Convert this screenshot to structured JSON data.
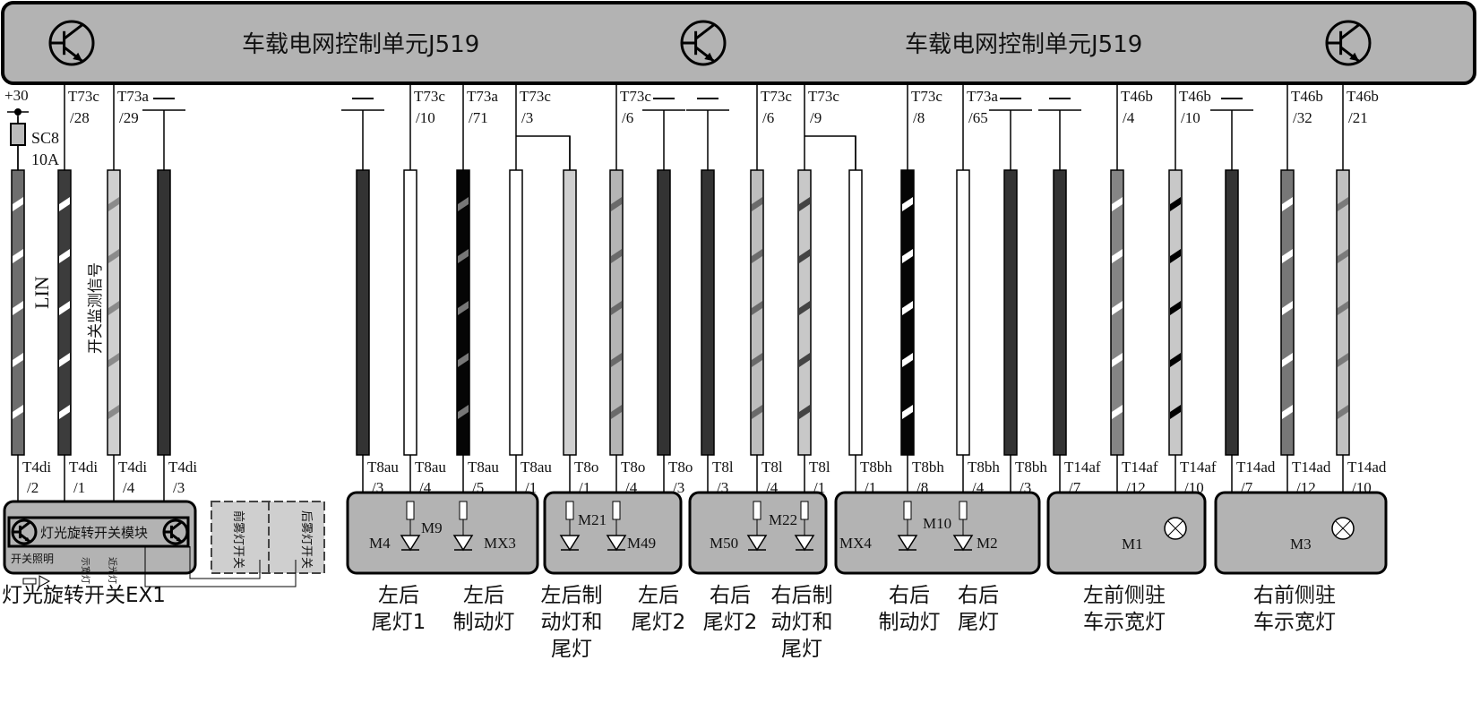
{
  "header": {
    "title_left": "车载电网控制单元J519",
    "title_right": "车载电网控制单元J519",
    "icon": "transistor-icon",
    "fill": "#b3b3b3"
  },
  "fuse": {
    "terminal": "+30",
    "name": "SC8",
    "rating": "10A"
  },
  "wire_labels": {
    "lin": "LIN",
    "switch_monitor": "开关监测信号"
  },
  "wires": [
    {
      "top": "+30",
      "top2": "",
      "bot": "T4di",
      "bot2": "/2",
      "color": "#6e6e6e",
      "stripe": "#ffffff",
      "ground": false
    },
    {
      "top": "T73c",
      "top2": "/28",
      "bot": "T4di",
      "bot2": "/1",
      "color": "#3c3c3c",
      "stripe": "#ffffff",
      "ground": false
    },
    {
      "top": "T73a",
      "top2": "/29",
      "bot": "T4di",
      "bot2": "/4",
      "color": "#cfcfcf",
      "stripe": "#8a8a8a",
      "ground": false
    },
    {
      "top": "",
      "top2": "",
      "bot": "T4di",
      "bot2": "/3",
      "color": "#333333",
      "stripe": "",
      "ground": true
    },
    {
      "top": "",
      "top2": "",
      "bot": "T8au",
      "bot2": "/3",
      "color": "#333333",
      "stripe": "",
      "ground": true
    },
    {
      "top": "T73c",
      "top2": "/10",
      "bot": "T8au",
      "bot2": "/4",
      "color": "#ffffff",
      "stripe": "",
      "ground": false
    },
    {
      "top": "T73a",
      "top2": "/71",
      "bot": "T8au",
      "bot2": "/5",
      "color": "#050505",
      "stripe": "#777777",
      "ground": false
    },
    {
      "top": "T73c",
      "top2": "/3",
      "bot": "T8au",
      "bot2": "/1",
      "color": "#ffffff",
      "stripe": "",
      "ground": false
    },
    {
      "top": "",
      "top2": "",
      "bot": "T8o",
      "bot2": "/1",
      "color": "#cfcfcf",
      "stripe": "",
      "ground": false
    },
    {
      "top": "T73c",
      "top2": "/6",
      "bot": "T8o",
      "bot2": "/4",
      "color": "#b5b5b5",
      "stripe": "#6a6a6a",
      "ground": false
    },
    {
      "top": "",
      "top2": "",
      "bot": "T8o",
      "bot2": "/3",
      "color": "#333333",
      "stripe": "",
      "ground": true
    },
    {
      "top": "",
      "top2": "",
      "bot": "T8l",
      "bot2": "/3",
      "color": "#333333",
      "stripe": "",
      "ground": true
    },
    {
      "top": "T73c",
      "top2": "/6",
      "bot": "T8l",
      "bot2": "/4",
      "color": "#bdbdbd",
      "stripe": "#6a6a6a",
      "ground": false
    },
    {
      "top": "T73c",
      "top2": "/9",
      "bot": "T8l",
      "bot2": "/1",
      "color": "#c8c8c8",
      "stripe": "#444444",
      "ground": false
    },
    {
      "top": "",
      "top2": "",
      "bot": "T8bh",
      "bot2": "/1",
      "color": "#ffffff",
      "stripe": "",
      "ground": false
    },
    {
      "top": "T73c",
      "top2": "/8",
      "bot": "T8bh",
      "bot2": "/8",
      "color": "#050505",
      "stripe": "#ffffff",
      "ground": false
    },
    {
      "top": "T73a",
      "top2": "/65",
      "bot": "T8bh",
      "bot2": "/4",
      "color": "#ffffff",
      "stripe": "",
      "ground": false
    },
    {
      "top": "",
      "top2": "",
      "bot": "T8bh",
      "bot2": "/3",
      "color": "#333333",
      "stripe": "",
      "ground": true
    },
    {
      "top": "",
      "top2": "",
      "bot": "T14af",
      "bot2": "/7",
      "color": "#333333",
      "stripe": "",
      "ground": true
    },
    {
      "top": "T46b",
      "top2": "/4",
      "bot": "T14af",
      "bot2": "/12",
      "color": "#858585",
      "stripe": "#ffffff",
      "ground": false
    },
    {
      "top": "T46b",
      "top2": "/10",
      "bot": "T14af",
      "bot2": "/10",
      "color": "#c8c8c8",
      "stripe": "#000000",
      "ground": false
    },
    {
      "top": "",
      "top2": "",
      "bot": "T14ad",
      "bot2": "/7",
      "color": "#333333",
      "stripe": "",
      "ground": true
    },
    {
      "top": "T46b",
      "top2": "/32",
      "bot": "T14ad",
      "bot2": "/12",
      "color": "#777777",
      "stripe": "#ffffff",
      "ground": false
    },
    {
      "top": "T46b",
      "top2": "/21",
      "bot": "T14ad",
      "bot2": "/10",
      "color": "#c0c0c0",
      "stripe": "#7a7a7a",
      "ground": false
    }
  ],
  "ex1": {
    "module": "灯光旋转开关模块",
    "illumination": "开关照明",
    "side_light": "示宽灯",
    "low_beam": "近光灯",
    "front_fog_switch": "前雾灯开关",
    "rear_fog_switch": "后雾灯开关",
    "caption": "灯光旋转开关EX1"
  },
  "components": [
    "M4",
    "M9",
    "MX3",
    "M21",
    "M49",
    "M50",
    "M22",
    "MX4",
    "M10",
    "M2",
    "M1",
    "M3"
  ],
  "captions": [
    [
      "左后",
      "尾灯1"
    ],
    [
      "左后",
      "制动灯"
    ],
    [
      "左后制",
      "动灯和",
      "尾灯"
    ],
    [
      "左后",
      "尾灯2"
    ],
    [
      "右后",
      "尾灯2"
    ],
    [
      "右后制",
      "动灯和",
      "尾灯"
    ],
    [
      "右后",
      "制动灯"
    ],
    [
      "右后",
      "尾灯"
    ],
    [
      "左前侧驻",
      "车示宽灯"
    ],
    [
      "右前侧驻",
      "车示宽灯"
    ]
  ]
}
